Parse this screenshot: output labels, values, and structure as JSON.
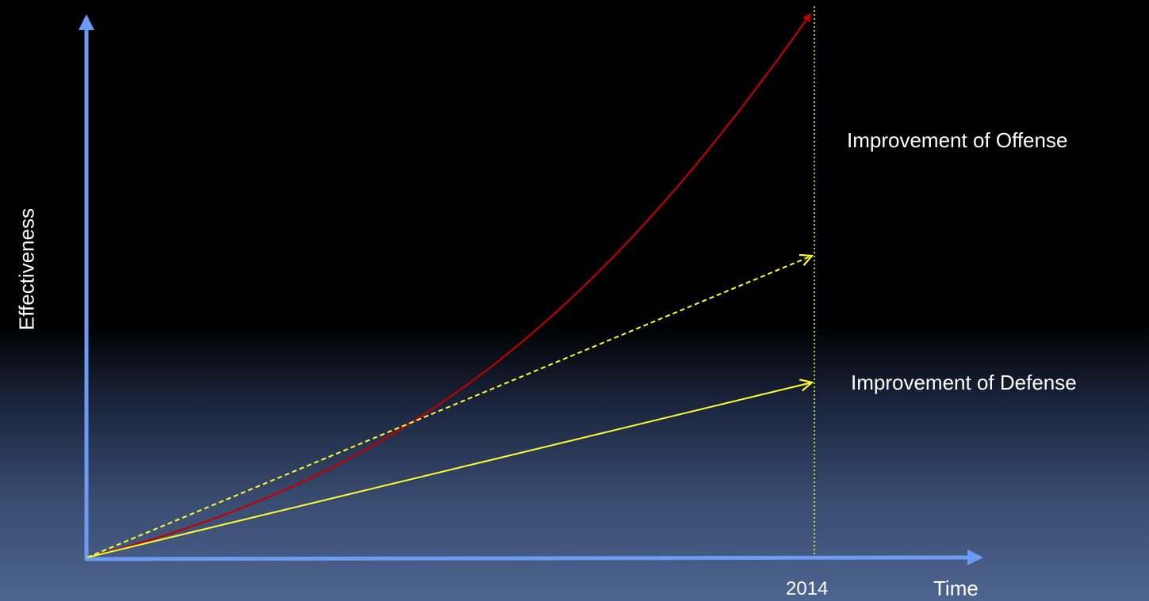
{
  "labels": {
    "offense": "Improvement of Offense",
    "defense": "Improvement of Defense",
    "year": "2014",
    "x_axis": "Time",
    "y_axis": "Effectiveness"
  },
  "colors": {
    "axis": "#6b9bf2",
    "offense_curve": "#c00000",
    "defense_line": "#ffff33",
    "projection_line": "#ffff33",
    "year_marker": "#ffff33",
    "text": "#ffffff"
  }
}
